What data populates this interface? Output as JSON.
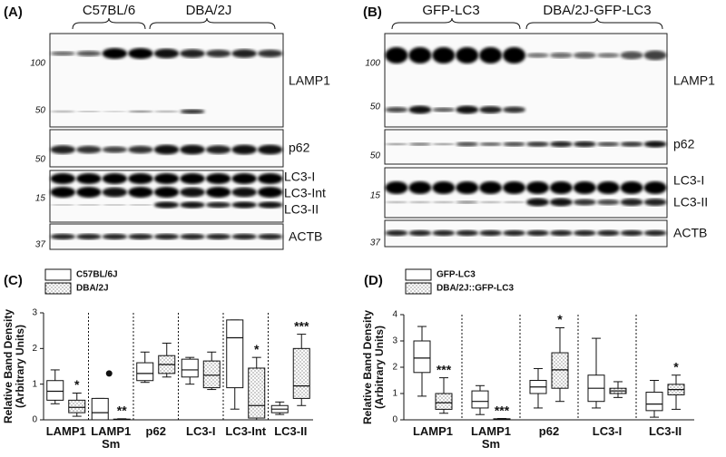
{
  "panel_a": {
    "label": "(A)",
    "groups": [
      "C57BL/6",
      "DBA/2J"
    ],
    "bands": [
      "LAMP1",
      "p62",
      "LC3-I",
      "LC3-Int",
      "LC3-II",
      "ACTB"
    ],
    "markers": [
      100,
      50,
      50,
      15,
      37
    ]
  },
  "panel_b": {
    "label": "(B)",
    "groups": [
      "GFP-LC3",
      "DBA/2J-GFP-LC3"
    ],
    "bands": [
      "LAMP1",
      "p62",
      "LC3-I",
      "LC3-II",
      "ACTB"
    ],
    "markers": [
      100,
      50,
      50,
      15,
      37
    ]
  },
  "chart_data": [
    {
      "type": "box",
      "panel_label": "(C)",
      "y_label": "Relative Band Density\n(Arbitrary Units)",
      "categories": [
        "LAMP1",
        "LAMP1\nSm",
        "p62",
        "LC3-I",
        "LC3-Int",
        "LC3-II"
      ],
      "ylim": [
        0,
        3
      ],
      "yticks": [
        0,
        1,
        2,
        3
      ],
      "series": [
        {
          "name": "C57BL/6J",
          "color": "#ffffff",
          "pattern": "solid",
          "boxes": [
            {
              "min": 0.45,
              "q1": 0.55,
              "median": 0.8,
              "q3": 1.1,
              "max": 1.4
            },
            {
              "min": 0,
              "q1": 0,
              "median": 0.2,
              "q3": 0.6,
              "max": 0.6
            },
            {
              "min": 1.05,
              "q1": 1.1,
              "median": 1.3,
              "q3": 1.6,
              "max": 1.9
            },
            {
              "min": 1.0,
              "q1": 1.2,
              "median": 1.4,
              "q3": 1.7,
              "max": 1.75
            },
            {
              "min": 0.3,
              "q1": 0.9,
              "median": 2.3,
              "q3": 2.8,
              "max": 2.8
            },
            {
              "min": 0.15,
              "q1": 0.2,
              "median": 0.3,
              "q3": 0.4,
              "max": 0.5
            }
          ],
          "outliers": [
            [],
            [
              1.3
            ],
            [],
            [],
            [],
            []
          ],
          "significance": [
            null,
            null,
            null,
            null,
            null,
            null
          ]
        },
        {
          "name": "DBA/2J",
          "color": "#ffffff",
          "pattern": "dots",
          "boxes": [
            {
              "min": 0.1,
              "q1": 0.2,
              "median": 0.35,
              "q3": 0.55,
              "max": 0.75
            },
            {
              "min": 0,
              "q1": 0,
              "median": 0.01,
              "q3": 0.02,
              "max": 0.03
            },
            {
              "min": 1.2,
              "q1": 1.3,
              "median": 1.55,
              "q3": 1.8,
              "max": 2.15
            },
            {
              "min": 0.85,
              "q1": 0.9,
              "median": 1.25,
              "q3": 1.65,
              "max": 1.9
            },
            {
              "min": 0,
              "q1": 0.05,
              "median": 0.4,
              "q3": 1.45,
              "max": 1.75
            },
            {
              "min": 0.4,
              "q1": 0.6,
              "median": 0.95,
              "q3": 2.0,
              "max": 2.4
            }
          ],
          "outliers": [
            [],
            [],
            [],
            [],
            [],
            []
          ],
          "significance": [
            "*",
            "**",
            null,
            null,
            "*",
            "***"
          ]
        }
      ]
    },
    {
      "type": "box",
      "panel_label": "(D)",
      "y_label": "Relative Band Density\n(Arbitrary Units)",
      "categories": [
        "LAMP1",
        "LAMP1\nSm",
        "p62",
        "LC3-I",
        "LC3-II"
      ],
      "ylim": [
        0,
        4
      ],
      "yticks": [
        0,
        1,
        2,
        3,
        4
      ],
      "series": [
        {
          "name": "GFP-LC3",
          "color": "#ffffff",
          "pattern": "solid",
          "boxes": [
            {
              "min": 0.9,
              "q1": 1.8,
              "median": 2.35,
              "q3": 3.0,
              "max": 3.55
            },
            {
              "min": 0.2,
              "q1": 0.45,
              "median": 0.7,
              "q3": 1.1,
              "max": 1.3
            },
            {
              "min": 0.45,
              "q1": 1.0,
              "median": 1.25,
              "q3": 1.5,
              "max": 1.95
            },
            {
              "min": 0.45,
              "q1": 0.7,
              "median": 1.2,
              "q3": 1.7,
              "max": 3.1
            },
            {
              "min": 0.1,
              "q1": 0.35,
              "median": 0.6,
              "q3": 1.05,
              "max": 1.5
            }
          ],
          "outliers": [
            [],
            [],
            [],
            [],
            []
          ],
          "significance": [
            null,
            null,
            null,
            null,
            null
          ]
        },
        {
          "name": "DBA/2J::GFP-LC3",
          "color": "#ffffff",
          "pattern": "dots",
          "boxes": [
            {
              "min": 0.25,
              "q1": 0.4,
              "median": 0.65,
              "q3": 1.0,
              "max": 1.6
            },
            {
              "min": 0,
              "q1": 0,
              "median": 0.02,
              "q3": 0.04,
              "max": 0.05
            },
            {
              "min": 0.7,
              "q1": 1.2,
              "median": 1.9,
              "q3": 2.55,
              "max": 3.5
            },
            {
              "min": 0.85,
              "q1": 1.0,
              "median": 1.1,
              "q3": 1.2,
              "max": 1.45
            },
            {
              "min": 0.4,
              "q1": 0.95,
              "median": 1.15,
              "q3": 1.35,
              "max": 1.7
            }
          ],
          "outliers": [
            [],
            [],
            [],
            [],
            []
          ],
          "significance": [
            "***",
            "***",
            "*",
            null,
            "*"
          ]
        }
      ]
    }
  ]
}
